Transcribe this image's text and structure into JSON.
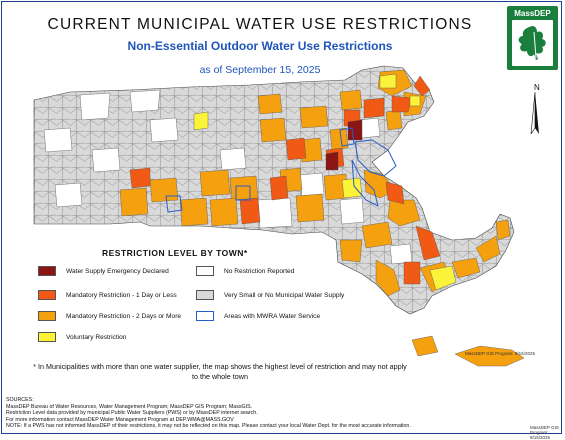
{
  "header": {
    "title": "CURRENT MUNICIPAL WATER USE RESTRICTIONS",
    "subtitle": "Non-Essential Outdoor Water Use Restrictions",
    "as_of": "as of September 15, 2025"
  },
  "logo": {
    "text": "MassDEP",
    "icon": "oak-leaf-icon",
    "color": "#1a7f3c"
  },
  "north_arrow": {
    "label": "N",
    "icon": "north-arrow-icon"
  },
  "legend": {
    "title": "RESTRICTION LEVEL BY TOWN*",
    "items": [
      {
        "label": "Water Supply Emergency Declared",
        "color": "#8b1515"
      },
      {
        "label": "Mandatory Restriction - 1 Day or Less",
        "color": "#f05a14"
      },
      {
        "label": "Mandatory Restriction - 2 Days or More",
        "color": "#f5a00f"
      },
      {
        "label": "Voluntary Restriction",
        "color": "#fbf23a"
      },
      {
        "label": "No Restriction Reported",
        "color": "#ffffff"
      },
      {
        "label": "Very Small or No Municipal Water Supply",
        "color": "#d9d9d9"
      },
      {
        "label": "Areas with MWRA Water Service",
        "color": "#2a5cc7"
      }
    ]
  },
  "footnote": "* In Municipalities with more than one water supplier, the map shows the highest level of restriction and may not apply to the whole town",
  "sources": [
    "SOURCES:",
    "MassDEP Bureau of Water Resources, Water Management Program; MassDEP GIS Program; MassGIS.",
    "Restriction Level data provided by municipal Public Water Suppliers (PWS) or by MassDEP internet search.",
    "For more information contact MassDEP Water Management Program at DEP.WMA@MASS.GOV",
    "NOTE: If a PWS has not informed MassDEP of their restrictions, it may not be reflected on this map. Please contact your local Water Dept. for the most accurate information."
  ],
  "credit": "MassDEP GIS Program: 9/15/2025"
}
